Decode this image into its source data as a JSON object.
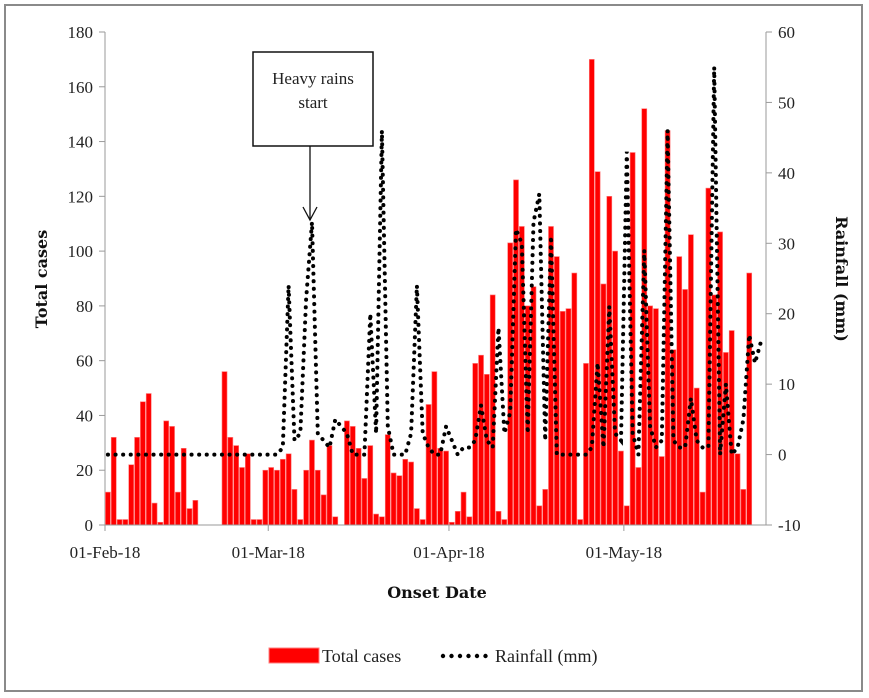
{
  "chart_data": {
    "type": "bar+line",
    "title": "",
    "xlabel": "Onset Date",
    "ylabel": "Total cases",
    "y2label": "Rainfall (mm)",
    "ylim": [
      0,
      180
    ],
    "y2lim": [
      -10,
      60
    ],
    "yticks": [
      "0",
      "20",
      "40",
      "60",
      "80",
      "100",
      "120",
      "140",
      "160",
      "180"
    ],
    "y2ticks": [
      "-10",
      "0",
      "10",
      "20",
      "30",
      "40",
      "50",
      "60"
    ],
    "xticks": [
      {
        "label": "01-Feb-18",
        "day": 0
      },
      {
        "label": "01-Mar-18",
        "day": 28
      },
      {
        "label": "01-Apr-18",
        "day": 59
      },
      {
        "label": "01-May-18",
        "day": 89
      }
    ],
    "x_start": "01-Feb-18",
    "x_days": 113,
    "legend": {
      "position": "bottom",
      "entries": [
        {
          "label": "Total cases",
          "style": "bar",
          "color": "#ff0000"
        },
        {
          "label": "Rainfall (mm)",
          "style": "dotted-line",
          "color": "#000000"
        }
      ]
    },
    "annotation": {
      "text_line1": "Heavy rains",
      "text_line2": "start",
      "arrow_day": 35,
      "arrow_value_cases": 112
    },
    "series": [
      {
        "name": "Total cases",
        "axis": "left",
        "type": "bar",
        "color": "#ff0000",
        "values": [
          12,
          32,
          2,
          2,
          22,
          32,
          45,
          48,
          8,
          1,
          38,
          36,
          12,
          28,
          6,
          9,
          0,
          0,
          0,
          0,
          56,
          32,
          29,
          21,
          26,
          2,
          2,
          20,
          21,
          20,
          24,
          26,
          13,
          2,
          20,
          31,
          20,
          11,
          29,
          3,
          0,
          38,
          36,
          28,
          17,
          29,
          4,
          3,
          33,
          19,
          18,
          24,
          23,
          6,
          2,
          44,
          56,
          28,
          27,
          1,
          5,
          12,
          3,
          59,
          62,
          55,
          84,
          5,
          2,
          103,
          126,
          109,
          80,
          87,
          7,
          13,
          109,
          98,
          78,
          79,
          92,
          2,
          59,
          170,
          129,
          88,
          120,
          100,
          27,
          7,
          136,
          21,
          152,
          80,
          79,
          25,
          144,
          64,
          98,
          86,
          106,
          50,
          12,
          123,
          84,
          107,
          63,
          71,
          26,
          13,
          92,
          0,
          0
        ]
      },
      {
        "name": "Rainfall (mm)",
        "axis": "right",
        "type": "line",
        "style": "dotted",
        "color": "#000000",
        "values": [
          0,
          0,
          0,
          0,
          0,
          0,
          0,
          0,
          0,
          0,
          0,
          0,
          0,
          0,
          0,
          0,
          0,
          0,
          0,
          0,
          0,
          0,
          0,
          0,
          0,
          0,
          0,
          0,
          0,
          0,
          1,
          24,
          2,
          3,
          22,
          33,
          3,
          2,
          1,
          5,
          4,
          3,
          0,
          0,
          0,
          20,
          3,
          46,
          4,
          0,
          0,
          0,
          3,
          24,
          3,
          1,
          0,
          0,
          4,
          2,
          0,
          1,
          1,
          2,
          7,
          2,
          1,
          18,
          3,
          6,
          32,
          30,
          3,
          33,
          37,
          2,
          31,
          0,
          0,
          0,
          0,
          0,
          0,
          1,
          13,
          1,
          21,
          3,
          2,
          43,
          3,
          0,
          29,
          4,
          1,
          2,
          46,
          2,
          1,
          1,
          8,
          2,
          1,
          1,
          55,
          0,
          10,
          0,
          1,
          5,
          17,
          13,
          16
        ]
      }
    ]
  }
}
